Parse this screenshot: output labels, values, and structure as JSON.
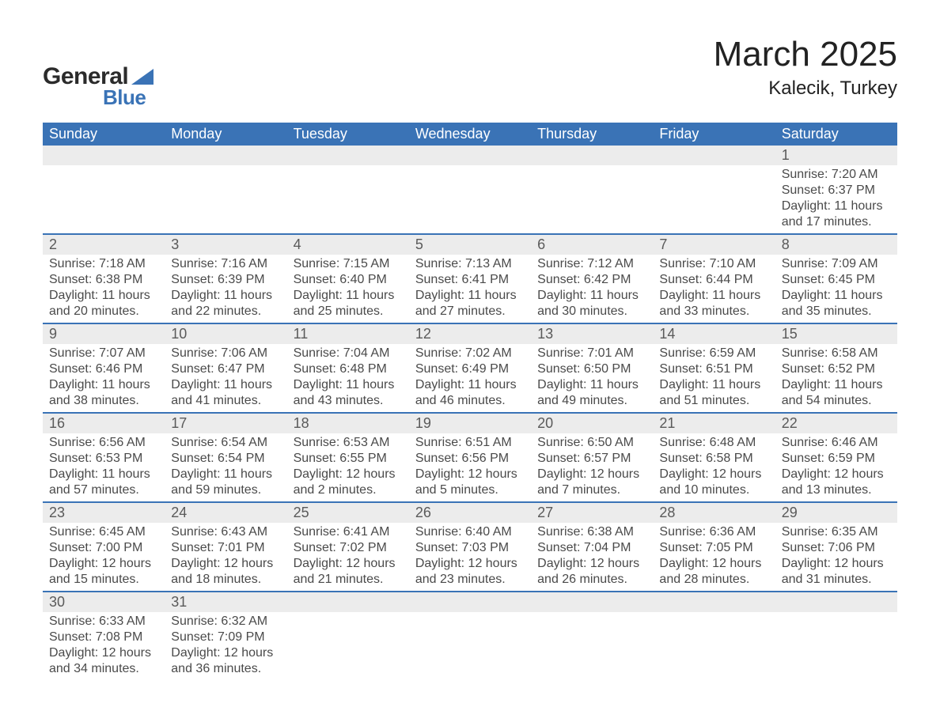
{
  "brand": {
    "word1": "General",
    "word2": "Blue"
  },
  "title": "March 2025",
  "location": "Kalecik, Turkey",
  "colors": {
    "header_blue": "#3a73b6",
    "row_gray": "#ececec",
    "background": "#ffffff",
    "text_dark": "#4a4a4a"
  },
  "day_names": [
    "Sunday",
    "Monday",
    "Tuesday",
    "Wednesday",
    "Thursday",
    "Friday",
    "Saturday"
  ],
  "weeks": [
    {
      "dates": [
        "",
        "",
        "",
        "",
        "",
        "",
        "1"
      ],
      "cells": [
        null,
        null,
        null,
        null,
        null,
        null,
        {
          "sunrise": "Sunrise: 7:20 AM",
          "sunset": "Sunset: 6:37 PM",
          "day1": "Daylight: 11 hours",
          "day2": "and 17 minutes."
        }
      ]
    },
    {
      "dates": [
        "2",
        "3",
        "4",
        "5",
        "6",
        "7",
        "8"
      ],
      "cells": [
        {
          "sunrise": "Sunrise: 7:18 AM",
          "sunset": "Sunset: 6:38 PM",
          "day1": "Daylight: 11 hours",
          "day2": "and 20 minutes."
        },
        {
          "sunrise": "Sunrise: 7:16 AM",
          "sunset": "Sunset: 6:39 PM",
          "day1": "Daylight: 11 hours",
          "day2": "and 22 minutes."
        },
        {
          "sunrise": "Sunrise: 7:15 AM",
          "sunset": "Sunset: 6:40 PM",
          "day1": "Daylight: 11 hours",
          "day2": "and 25 minutes."
        },
        {
          "sunrise": "Sunrise: 7:13 AM",
          "sunset": "Sunset: 6:41 PM",
          "day1": "Daylight: 11 hours",
          "day2": "and 27 minutes."
        },
        {
          "sunrise": "Sunrise: 7:12 AM",
          "sunset": "Sunset: 6:42 PM",
          "day1": "Daylight: 11 hours",
          "day2": "and 30 minutes."
        },
        {
          "sunrise": "Sunrise: 7:10 AM",
          "sunset": "Sunset: 6:44 PM",
          "day1": "Daylight: 11 hours",
          "day2": "and 33 minutes."
        },
        {
          "sunrise": "Sunrise: 7:09 AM",
          "sunset": "Sunset: 6:45 PM",
          "day1": "Daylight: 11 hours",
          "day2": "and 35 minutes."
        }
      ]
    },
    {
      "dates": [
        "9",
        "10",
        "11",
        "12",
        "13",
        "14",
        "15"
      ],
      "cells": [
        {
          "sunrise": "Sunrise: 7:07 AM",
          "sunset": "Sunset: 6:46 PM",
          "day1": "Daylight: 11 hours",
          "day2": "and 38 minutes."
        },
        {
          "sunrise": "Sunrise: 7:06 AM",
          "sunset": "Sunset: 6:47 PM",
          "day1": "Daylight: 11 hours",
          "day2": "and 41 minutes."
        },
        {
          "sunrise": "Sunrise: 7:04 AM",
          "sunset": "Sunset: 6:48 PM",
          "day1": "Daylight: 11 hours",
          "day2": "and 43 minutes."
        },
        {
          "sunrise": "Sunrise: 7:02 AM",
          "sunset": "Sunset: 6:49 PM",
          "day1": "Daylight: 11 hours",
          "day2": "and 46 minutes."
        },
        {
          "sunrise": "Sunrise: 7:01 AM",
          "sunset": "Sunset: 6:50 PM",
          "day1": "Daylight: 11 hours",
          "day2": "and 49 minutes."
        },
        {
          "sunrise": "Sunrise: 6:59 AM",
          "sunset": "Sunset: 6:51 PM",
          "day1": "Daylight: 11 hours",
          "day2": "and 51 minutes."
        },
        {
          "sunrise": "Sunrise: 6:58 AM",
          "sunset": "Sunset: 6:52 PM",
          "day1": "Daylight: 11 hours",
          "day2": "and 54 minutes."
        }
      ]
    },
    {
      "dates": [
        "16",
        "17",
        "18",
        "19",
        "20",
        "21",
        "22"
      ],
      "cells": [
        {
          "sunrise": "Sunrise: 6:56 AM",
          "sunset": "Sunset: 6:53 PM",
          "day1": "Daylight: 11 hours",
          "day2": "and 57 minutes."
        },
        {
          "sunrise": "Sunrise: 6:54 AM",
          "sunset": "Sunset: 6:54 PM",
          "day1": "Daylight: 11 hours",
          "day2": "and 59 minutes."
        },
        {
          "sunrise": "Sunrise: 6:53 AM",
          "sunset": "Sunset: 6:55 PM",
          "day1": "Daylight: 12 hours",
          "day2": "and 2 minutes."
        },
        {
          "sunrise": "Sunrise: 6:51 AM",
          "sunset": "Sunset: 6:56 PM",
          "day1": "Daylight: 12 hours",
          "day2": "and 5 minutes."
        },
        {
          "sunrise": "Sunrise: 6:50 AM",
          "sunset": "Sunset: 6:57 PM",
          "day1": "Daylight: 12 hours",
          "day2": "and 7 minutes."
        },
        {
          "sunrise": "Sunrise: 6:48 AM",
          "sunset": "Sunset: 6:58 PM",
          "day1": "Daylight: 12 hours",
          "day2": "and 10 minutes."
        },
        {
          "sunrise": "Sunrise: 6:46 AM",
          "sunset": "Sunset: 6:59 PM",
          "day1": "Daylight: 12 hours",
          "day2": "and 13 minutes."
        }
      ]
    },
    {
      "dates": [
        "23",
        "24",
        "25",
        "26",
        "27",
        "28",
        "29"
      ],
      "cells": [
        {
          "sunrise": "Sunrise: 6:45 AM",
          "sunset": "Sunset: 7:00 PM",
          "day1": "Daylight: 12 hours",
          "day2": "and 15 minutes."
        },
        {
          "sunrise": "Sunrise: 6:43 AM",
          "sunset": "Sunset: 7:01 PM",
          "day1": "Daylight: 12 hours",
          "day2": "and 18 minutes."
        },
        {
          "sunrise": "Sunrise: 6:41 AM",
          "sunset": "Sunset: 7:02 PM",
          "day1": "Daylight: 12 hours",
          "day2": "and 21 minutes."
        },
        {
          "sunrise": "Sunrise: 6:40 AM",
          "sunset": "Sunset: 7:03 PM",
          "day1": "Daylight: 12 hours",
          "day2": "and 23 minutes."
        },
        {
          "sunrise": "Sunrise: 6:38 AM",
          "sunset": "Sunset: 7:04 PM",
          "day1": "Daylight: 12 hours",
          "day2": "and 26 minutes."
        },
        {
          "sunrise": "Sunrise: 6:36 AM",
          "sunset": "Sunset: 7:05 PM",
          "day1": "Daylight: 12 hours",
          "day2": "and 28 minutes."
        },
        {
          "sunrise": "Sunrise: 6:35 AM",
          "sunset": "Sunset: 7:06 PM",
          "day1": "Daylight: 12 hours",
          "day2": "and 31 minutes."
        }
      ]
    },
    {
      "dates": [
        "30",
        "31",
        "",
        "",
        "",
        "",
        ""
      ],
      "cells": [
        {
          "sunrise": "Sunrise: 6:33 AM",
          "sunset": "Sunset: 7:08 PM",
          "day1": "Daylight: 12 hours",
          "day2": "and 34 minutes."
        },
        {
          "sunrise": "Sunrise: 6:32 AM",
          "sunset": "Sunset: 7:09 PM",
          "day1": "Daylight: 12 hours",
          "day2": "and 36 minutes."
        },
        null,
        null,
        null,
        null,
        null
      ]
    }
  ]
}
